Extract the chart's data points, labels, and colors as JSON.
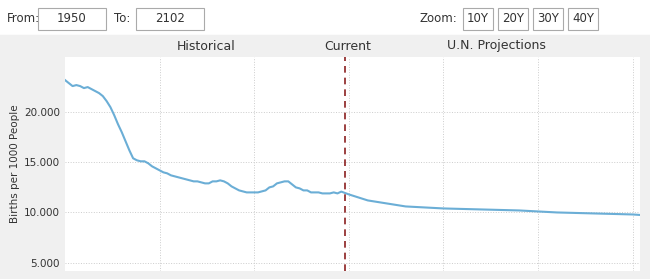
{
  "title_historical": "Historical",
  "title_current": "Current",
  "title_projections": "U.N. Projections",
  "ylabel": "Births per 1000 People",
  "from_label": "From:",
  "from_value": "1950",
  "to_label": "To:",
  "to_value": "2102",
  "zoom_label": "Zoom:",
  "zoom_options": [
    "10Y",
    "20Y",
    "30Y",
    "40Y"
  ],
  "current_year": 2024,
  "xmin": 1950,
  "xmax": 2102,
  "ylim": [
    4200,
    25500
  ],
  "yticks": [
    5000,
    10000,
    15000,
    20000
  ],
  "ytick_labels": [
    "5.000",
    "10.000",
    "15.000",
    "20.000"
  ],
  "background_color": "#f0f0f0",
  "top_bar_color": "#ffffff",
  "plot_bg_color": "#ffffff",
  "line_color": "#6baed6",
  "dashed_line_color": "#8b2020",
  "grid_color": "#cccccc",
  "years": [
    1950,
    1951,
    1952,
    1953,
    1954,
    1955,
    1956,
    1957,
    1958,
    1959,
    1960,
    1961,
    1962,
    1963,
    1964,
    1965,
    1966,
    1967,
    1968,
    1969,
    1970,
    1971,
    1972,
    1973,
    1974,
    1975,
    1976,
    1977,
    1978,
    1979,
    1980,
    1981,
    1982,
    1983,
    1984,
    1985,
    1986,
    1987,
    1988,
    1989,
    1990,
    1991,
    1992,
    1993,
    1994,
    1995,
    1996,
    1997,
    1998,
    1999,
    2000,
    2001,
    2002,
    2003,
    2004,
    2005,
    2006,
    2007,
    2008,
    2009,
    2010,
    2011,
    2012,
    2013,
    2014,
    2015,
    2016,
    2017,
    2018,
    2019,
    2020,
    2021,
    2022,
    2023,
    2024,
    2025,
    2030,
    2035,
    2040,
    2045,
    2050,
    2060,
    2070,
    2080,
    2090,
    2100,
    2102
  ],
  "values": [
    23200,
    22900,
    22600,
    22700,
    22600,
    22400,
    22500,
    22300,
    22100,
    21900,
    21600,
    21100,
    20500,
    19700,
    18800,
    18000,
    17100,
    16200,
    15400,
    15200,
    15100,
    15100,
    14900,
    14600,
    14400,
    14200,
    14000,
    13900,
    13700,
    13600,
    13500,
    13400,
    13300,
    13200,
    13100,
    13100,
    13000,
    12900,
    12900,
    13100,
    13100,
    13200,
    13100,
    12900,
    12600,
    12400,
    12200,
    12100,
    12000,
    12000,
    12000,
    12000,
    12100,
    12200,
    12500,
    12600,
    12900,
    13000,
    13100,
    13100,
    12800,
    12500,
    12400,
    12200,
    12200,
    12000,
    12000,
    12000,
    11900,
    11900,
    11900,
    12000,
    11900,
    12080,
    11939,
    11800,
    11200,
    10900,
    10600,
    10500,
    10400,
    10300,
    10200,
    10000,
    9900,
    9800,
    9750
  ],
  "vgrid_years": [
    1975,
    2000,
    2025,
    2050,
    2075,
    2100
  ]
}
